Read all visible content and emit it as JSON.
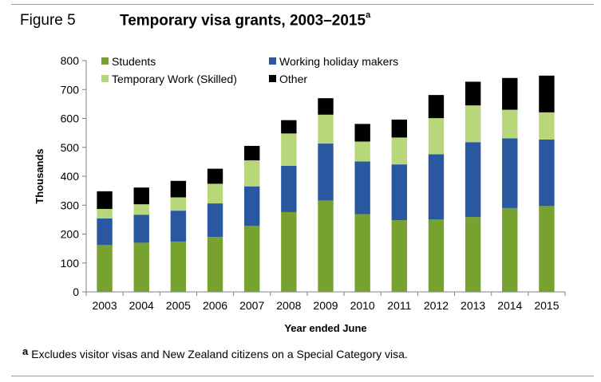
{
  "header": {
    "figure_label": "Figure 5",
    "title": "Temporary visa grants, 2003–2015",
    "title_superscript": "a"
  },
  "chart_data": {
    "type": "bar",
    "stacked": true,
    "title": "Temporary visa grants, 2003–2015",
    "xlabel": "Year ended June",
    "ylabel": "Thousands",
    "ylim": [
      0,
      800
    ],
    "yticks": [
      0,
      100,
      200,
      300,
      400,
      500,
      600,
      700,
      800
    ],
    "grid": false,
    "legend_position": "top-left",
    "categories": [
      "2003",
      "2004",
      "2005",
      "2006",
      "2007",
      "2008",
      "2009",
      "2010",
      "2011",
      "2012",
      "2013",
      "2014",
      "2015"
    ],
    "series": [
      {
        "name": "Students",
        "color": "#77a22f",
        "values": [
          162,
          170,
          174,
          190,
          228,
          276,
          316,
          269,
          248,
          251,
          259,
          290,
          297
        ]
      },
      {
        "name": "Working holiday makers",
        "color": "#2a58a0",
        "values": [
          92,
          97,
          107,
          116,
          137,
          160,
          197,
          182,
          193,
          225,
          259,
          241,
          230
        ]
      },
      {
        "name": "Temporary Work (Skilled)",
        "color": "#b7d77a",
        "values": [
          33,
          36,
          46,
          68,
          90,
          112,
          100,
          69,
          93,
          125,
          127,
          99,
          94
        ]
      },
      {
        "name": "Other",
        "color": "#000000",
        "values": [
          61,
          58,
          57,
          52,
          50,
          46,
          57,
          61,
          62,
          80,
          82,
          110,
          127
        ]
      }
    ]
  },
  "footnote": {
    "mark": "a",
    "text": "Excludes visitor visas and New Zealand citizens on a Special Category visa."
  },
  "colors": {
    "accent_rule": "#8db33a"
  }
}
